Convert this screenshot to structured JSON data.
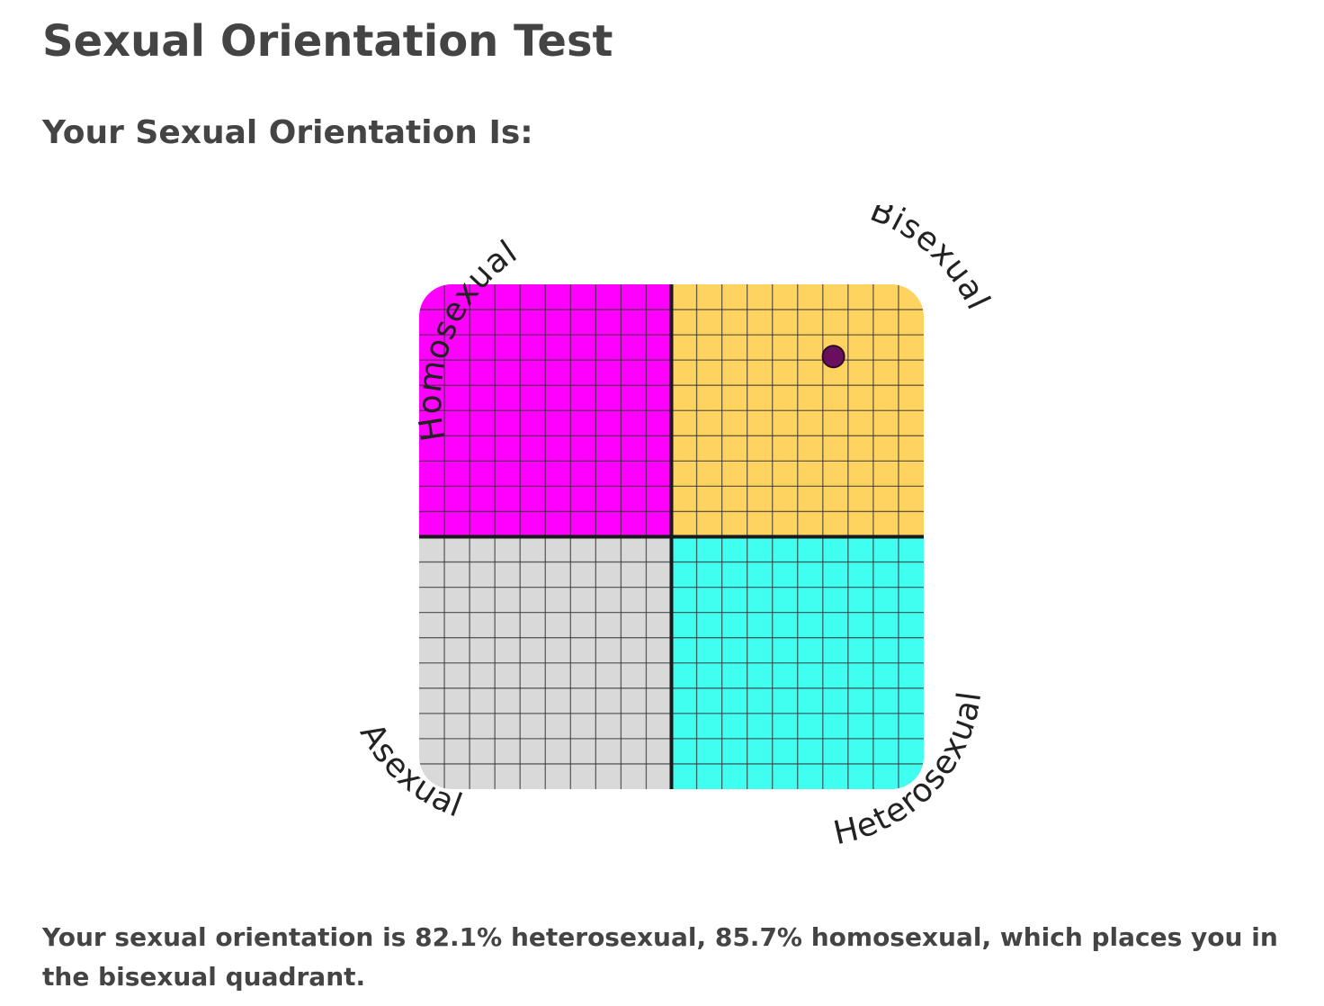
{
  "page": {
    "title": "Sexual Orientation Test",
    "result_heading": "Your Sexual Orientation Is:",
    "result_text": "Your sexual orientation is 82.1% heterosexual, 85.7% homosexual, which places you in the bisexual quadrant."
  },
  "chart_data": {
    "type": "scatter",
    "quadrants": [
      {
        "name": "Homosexual",
        "position": "top-left",
        "color": "#ff00ff"
      },
      {
        "name": "Bisexual",
        "position": "top-right",
        "color": "#ffd35f"
      },
      {
        "name": "Asexual",
        "position": "bottom-left",
        "color": "#d9d9d9"
      },
      {
        "name": "Heterosexual",
        "position": "bottom-right",
        "color": "#40fff0"
      }
    ],
    "grid_divisions": 20,
    "point": {
      "heterosexual_percent": 82.1,
      "homosexual_percent": 85.7,
      "color": "#6a0f5e"
    }
  }
}
